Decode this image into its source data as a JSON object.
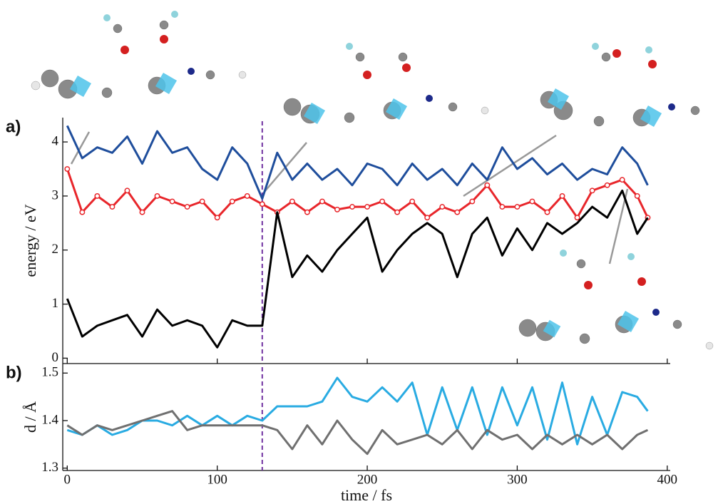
{
  "chart_data": [
    {
      "type": "line",
      "label": "a)",
      "ylabel": "energy / eV",
      "x": [
        0,
        10,
        20,
        30,
        40,
        50,
        60,
        70,
        80,
        90,
        100,
        110,
        120,
        130,
        140,
        150,
        160,
        170,
        180,
        190,
        200,
        210,
        220,
        230,
        240,
        250,
        260,
        270,
        280,
        290,
        300,
        310,
        320,
        330,
        340,
        350,
        360,
        370,
        380,
        387
      ],
      "xlim": [
        -3,
        402
      ],
      "xticks": [
        0,
        100,
        200,
        300,
        400
      ],
      "ylim": [
        -0.1,
        4.45
      ],
      "yticks": [
        0,
        1,
        2,
        3,
        4
      ],
      "vline": 130,
      "series": [
        {
          "color": "#1f4e9c",
          "values": [
            4.3,
            3.7,
            3.9,
            3.8,
            4.1,
            3.6,
            4.2,
            3.8,
            3.9,
            3.5,
            3.3,
            3.9,
            3.6,
            2.95,
            3.8,
            3.3,
            3.6,
            3.3,
            3.5,
            3.2,
            3.6,
            3.5,
            3.2,
            3.6,
            3.3,
            3.5,
            3.2,
            3.6,
            3.3,
            3.9,
            3.5,
            3.7,
            3.4,
            3.6,
            3.3,
            3.5,
            3.4,
            3.9,
            3.6,
            3.2
          ]
        },
        {
          "color": "#e8262b",
          "marker": "circle",
          "values": [
            3.5,
            2.7,
            3.0,
            2.8,
            3.1,
            2.7,
            3.0,
            2.9,
            2.8,
            2.9,
            2.6,
            2.9,
            3.0,
            2.85,
            2.7,
            2.9,
            2.7,
            2.9,
            2.75,
            2.8,
            2.8,
            2.9,
            2.7,
            2.9,
            2.6,
            2.8,
            2.7,
            2.9,
            3.2,
            2.8,
            2.8,
            2.9,
            2.7,
            3.0,
            2.6,
            3.1,
            3.2,
            3.3,
            3.0,
            2.6
          ]
        },
        {
          "color": "#000000",
          "values": [
            1.1,
            0.4,
            0.6,
            0.7,
            0.8,
            0.4,
            0.9,
            0.6,
            0.7,
            0.6,
            0.2,
            0.7,
            0.6,
            0.6,
            2.7,
            1.5,
            1.9,
            1.6,
            2.0,
            2.3,
            2.6,
            1.6,
            2.0,
            2.3,
            2.5,
            2.3,
            1.5,
            2.3,
            2.6,
            1.9,
            2.4,
            2.0,
            2.5,
            2.3,
            2.5,
            2.8,
            2.6,
            3.1,
            2.3,
            2.6
          ]
        }
      ]
    },
    {
      "type": "line",
      "label": "b)",
      "ylabel": "d / Å",
      "xlabel": "time / fs",
      "x": [
        0,
        10,
        20,
        30,
        40,
        50,
        60,
        70,
        80,
        90,
        100,
        110,
        120,
        130,
        140,
        150,
        160,
        170,
        180,
        190,
        200,
        210,
        220,
        230,
        240,
        250,
        260,
        270,
        280,
        290,
        300,
        310,
        320,
        330,
        340,
        350,
        360,
        370,
        380,
        387
      ],
      "xlim": [
        -3,
        402
      ],
      "xticks": [
        0,
        100,
        200,
        300,
        400
      ],
      "ylim": [
        1.295,
        1.52
      ],
      "yticks": [
        1.3,
        1.4,
        1.5
      ],
      "vline": 130,
      "series": [
        {
          "color": "#29abe2",
          "values": [
            1.38,
            1.37,
            1.39,
            1.37,
            1.38,
            1.4,
            1.4,
            1.39,
            1.41,
            1.39,
            1.41,
            1.39,
            1.41,
            1.4,
            1.43,
            1.43,
            1.43,
            1.44,
            1.49,
            1.45,
            1.44,
            1.47,
            1.44,
            1.48,
            1.37,
            1.47,
            1.38,
            1.47,
            1.37,
            1.47,
            1.39,
            1.47,
            1.36,
            1.48,
            1.35,
            1.45,
            1.37,
            1.46,
            1.45,
            1.42
          ]
        },
        {
          "color": "#707070",
          "values": [
            1.39,
            1.37,
            1.39,
            1.38,
            1.39,
            1.4,
            1.41,
            1.42,
            1.38,
            1.39,
            1.39,
            1.39,
            1.39,
            1.39,
            1.38,
            1.34,
            1.39,
            1.35,
            1.4,
            1.36,
            1.33,
            1.38,
            1.35,
            1.36,
            1.37,
            1.35,
            1.38,
            1.34,
            1.38,
            1.36,
            1.37,
            1.34,
            1.37,
            1.35,
            1.37,
            1.35,
            1.37,
            1.34,
            1.37,
            1.38
          ]
        }
      ]
    }
  ]
}
